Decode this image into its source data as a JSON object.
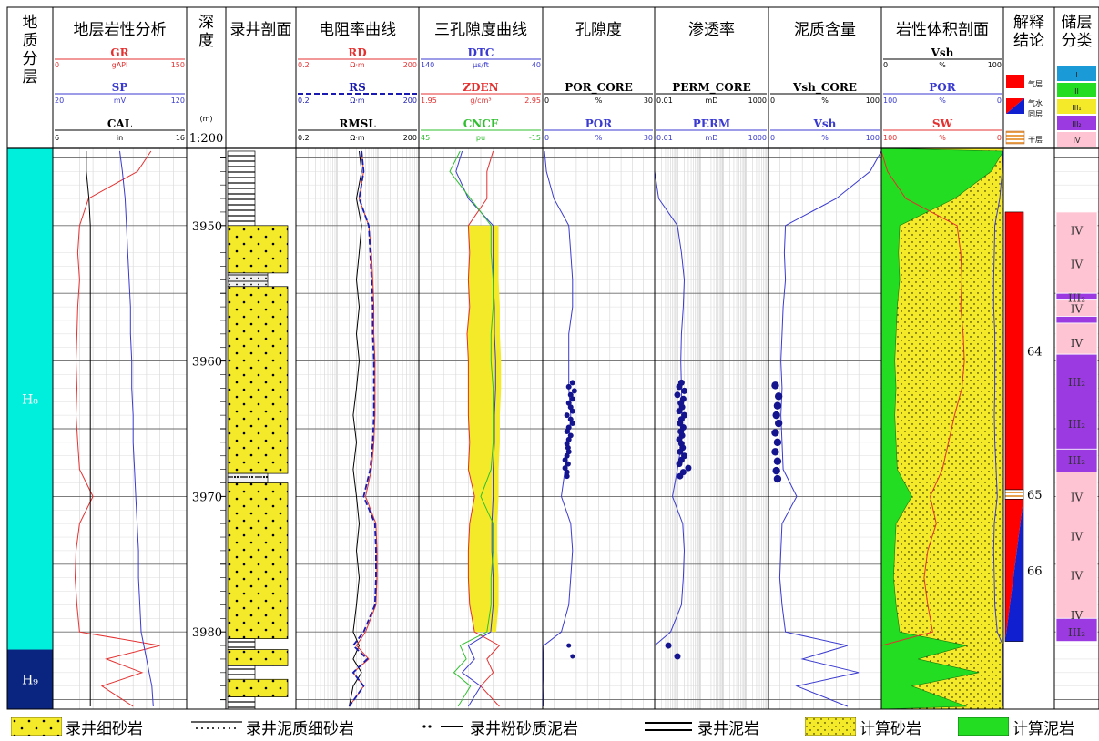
{
  "tracks": {
    "layers": {
      "title": "地质分层"
    },
    "lith": {
      "title": "地层岩性分析",
      "curves": [
        {
          "name": "GR",
          "unit": "gAPI",
          "min": "0",
          "max": "150",
          "color": "#e53030"
        },
        {
          "name": "SP",
          "unit": "mV",
          "min": "20",
          "max": "120",
          "color": "#3a3ad0"
        },
        {
          "name": "CAL",
          "unit": "in",
          "min": "6",
          "max": "16",
          "color": "#000000"
        }
      ]
    },
    "depth": {
      "title": "深度",
      "unit": "(m)",
      "scale": "1:200"
    },
    "core": {
      "title": "录井剖面"
    },
    "res": {
      "title": "电阻率曲线",
      "curves": [
        {
          "name": "RD",
          "unit": "Ω·m",
          "min": "0.2",
          "max": "200",
          "color": "#e53030"
        },
        {
          "name": "RS",
          "unit": "Ω·m",
          "min": "0.2",
          "max": "200",
          "color": "#1a1ab0"
        },
        {
          "name": "RMSL",
          "unit": "Ω·m",
          "min": "0.2",
          "max": "200",
          "color": "#000000"
        }
      ]
    },
    "por3": {
      "title": "三孔隙度曲线",
      "curves": [
        {
          "name": "DTC",
          "unit": "μs/ft",
          "min": "140",
          "max": "40",
          "color": "#3a3ad0"
        },
        {
          "name": "ZDEN",
          "unit": "g/cm³",
          "min": "1.95",
          "max": "2.95",
          "color": "#e53030"
        },
        {
          "name": "CNCF",
          "unit": "pu",
          "min": "45",
          "max": "-15",
          "color": "#2fbf2f"
        }
      ]
    },
    "por": {
      "title": "孔隙度",
      "curves": [
        {
          "name": "POR_CORE",
          "unit": "%",
          "min": "0",
          "max": "30",
          "color": "#000000"
        },
        {
          "name": "POR",
          "unit": "%",
          "min": "0",
          "max": "30",
          "color": "#3a3ad0"
        }
      ]
    },
    "perm": {
      "title": "渗透率",
      "curves": [
        {
          "name": "PERM_CORE",
          "unit": "mD",
          "min": "0.01",
          "max": "1000",
          "color": "#000000"
        },
        {
          "name": "PERM",
          "unit": "mD",
          "min": "0.01",
          "max": "1000",
          "color": "#3a3ad0"
        }
      ]
    },
    "vsh": {
      "title": "泥质含量",
      "curves": [
        {
          "name": "Vsh_CORE",
          "unit": "%",
          "min": "0",
          "max": "100",
          "color": "#000000"
        },
        {
          "name": "Vsh",
          "unit": "%",
          "min": "0",
          "max": "100",
          "color": "#3a3ad0"
        }
      ]
    },
    "vol": {
      "title": "岩性体积剖面",
      "curves": [
        {
          "name": "Vsh",
          "unit": "%",
          "min": "0",
          "max": "100",
          "color": "#000000"
        },
        {
          "name": "POR",
          "unit": "%",
          "min": "100",
          "max": "0",
          "color": "#3a3ad0"
        },
        {
          "name": "SW",
          "unit": "%",
          "min": "100",
          "max": "0",
          "color": "#e53030"
        }
      ]
    },
    "interp": {
      "title": "解释结论",
      "legend": [
        {
          "label": "气层",
          "color": "#ff0000"
        },
        {
          "label": "气水同层",
          "color": "#ff0000"
        },
        {
          "label": "干层",
          "color": "#f0c070"
        }
      ]
    },
    "class": {
      "title": "储层分类",
      "legend": [
        "I",
        "II",
        "III₁",
        "III₂",
        "IV"
      ]
    }
  },
  "chart_data": {
    "type": "well-log",
    "depth_ticks": [
      3950,
      3960,
      3970,
      3980
    ],
    "depth_range": [
      3944.3,
      3985.7
    ],
    "layers": [
      {
        "name": "H₈",
        "top": 3944.3,
        "bottom": 3981.3,
        "color": "#00eedc"
      },
      {
        "name": "H₉",
        "top": 3981.3,
        "bottom": 3985.7,
        "color": "#0a2580"
      }
    ],
    "core_intervals": [
      {
        "top": 3944.5,
        "bottom": 3950.0,
        "type": "mudstone"
      },
      {
        "top": 3950.0,
        "bottom": 3953.5,
        "type": "fine-sandstone"
      },
      {
        "top": 3953.5,
        "bottom": 3954.5,
        "type": "argillaceous-sandstone"
      },
      {
        "top": 3954.5,
        "bottom": 3968.3,
        "type": "fine-sandstone"
      },
      {
        "top": 3968.3,
        "bottom": 3969.0,
        "type": "sandy-mudstone"
      },
      {
        "top": 3969.0,
        "bottom": 3980.5,
        "type": "fine-sandstone"
      },
      {
        "top": 3980.5,
        "bottom": 3981.3,
        "type": "mudstone"
      },
      {
        "top": 3981.3,
        "bottom": 3982.5,
        "type": "fine-sandstone"
      },
      {
        "top": 3982.5,
        "bottom": 3983.5,
        "type": "mudstone"
      },
      {
        "top": 3983.5,
        "bottom": 3984.8,
        "type": "fine-sandstone"
      },
      {
        "top": 3984.8,
        "bottom": 3985.7,
        "type": "mudstone"
      }
    ],
    "interpretation": [
      {
        "top": 3949.0,
        "bottom": 3969.5,
        "type": "gas",
        "label": "64"
      },
      {
        "top": 3969.5,
        "bottom": 3970.2,
        "type": "dry",
        "label": "65"
      },
      {
        "top": 3970.2,
        "bottom": 3980.7,
        "type": "gas-water",
        "label": "66"
      }
    ],
    "reservoir_classes": [
      {
        "top": 3944.5,
        "bottom": 3945.5,
        "cls": "I"
      },
      {
        "top": 3945.5,
        "bottom": 3946.5,
        "cls": "II"
      },
      {
        "top": 3946.5,
        "bottom": 3947.5,
        "cls": "III₁"
      },
      {
        "top": 3947.5,
        "bottom": 3948.5,
        "cls": "III₂"
      },
      {
        "top": 3948.5,
        "bottom": 3949.5,
        "cls": "IV"
      },
      {
        "top": 3949.0,
        "bottom": 3955.0,
        "cls": "IV"
      },
      {
        "top": 3955.0,
        "bottom": 3955.5,
        "cls": "III₂"
      },
      {
        "top": 3955.5,
        "bottom": 3956.7,
        "cls": "IV"
      },
      {
        "top": 3956.7,
        "bottom": 3957.2,
        "cls": "III₂"
      },
      {
        "top": 3957.2,
        "bottom": 3959.5,
        "cls": "IV"
      },
      {
        "top": 3959.5,
        "bottom": 3966.5,
        "cls": "III₂"
      },
      {
        "top": 3966.5,
        "bottom": 3968.2,
        "cls": "III₂"
      },
      {
        "top": 3968.2,
        "bottom": 3979.0,
        "cls": "IV"
      },
      {
        "top": 3979.0,
        "bottom": 3980.7,
        "cls": "III₂"
      }
    ],
    "class_labels": [
      {
        "depth": 3950.3,
        "cls": "IV"
      },
      {
        "depth": 3952.8,
        "cls": "IV"
      },
      {
        "depth": 3955.3,
        "cls": "III₂"
      },
      {
        "depth": 3956.1,
        "cls": "IV"
      },
      {
        "depth": 3958.6,
        "cls": "IV"
      },
      {
        "depth": 3961.5,
        "cls": "III₂"
      },
      {
        "depth": 3964.6,
        "cls": "III₂"
      },
      {
        "depth": 3967.3,
        "cls": "III₂"
      },
      {
        "depth": 3970.0,
        "cls": "IV"
      },
      {
        "depth": 3972.9,
        "cls": "IV"
      },
      {
        "depth": 3975.8,
        "cls": "IV"
      },
      {
        "depth": 3978.7,
        "cls": "IV"
      },
      {
        "depth": 3980.0,
        "cls": "III₂"
      }
    ],
    "curves": {
      "depth": [
        3944.5,
        3946,
        3948,
        3950,
        3952,
        3954,
        3956,
        3958,
        3960,
        3962,
        3964,
        3966,
        3968,
        3970,
        3972,
        3974,
        3976,
        3978,
        3980,
        3981,
        3982,
        3983,
        3984,
        3985.5
      ],
      "GR": [
        110,
        95,
        40,
        30,
        28,
        30,
        28,
        27,
        26,
        27,
        26,
        28,
        30,
        45,
        30,
        26,
        25,
        27,
        30,
        120,
        60,
        100,
        55,
        90
      ],
      "SP": [
        70,
        72,
        74,
        75,
        76,
        77,
        78,
        78,
        79,
        79,
        80,
        80,
        81,
        82,
        83,
        84,
        84,
        85,
        86,
        88,
        90,
        92,
        94,
        95
      ],
      "CAL": [
        8.5,
        8.5,
        8.7,
        8.8,
        8.8,
        8.8,
        8.8,
        8.8,
        8.8,
        8.8,
        8.8,
        8.8,
        8.8,
        8.8,
        8.8,
        8.8,
        8.8,
        8.8,
        8.8,
        8.8,
        8.8,
        8.8,
        8.8,
        8.8
      ],
      "RD": [
        8,
        9,
        7,
        12,
        14,
        15,
        16,
        16,
        17,
        17,
        17,
        16,
        14,
        10,
        18,
        19,
        19,
        18,
        10,
        6,
        12,
        5,
        9,
        4
      ],
      "RS": [
        8,
        9,
        7,
        12,
        13,
        14,
        15,
        15,
        16,
        16,
        16,
        15,
        13,
        9,
        17,
        18,
        18,
        17,
        9,
        5,
        11,
        5,
        9,
        4
      ],
      "RMSL": [
        7,
        8,
        6,
        8,
        7,
        6,
        7,
        6,
        7,
        6,
        5,
        6,
        5,
        6,
        7,
        6,
        7,
        6,
        5,
        7,
        5,
        8,
        5,
        4
      ],
      "DTC": [
        105,
        110,
        100,
        80,
        80,
        80,
        79,
        79,
        78,
        78,
        79,
        79,
        80,
        80,
        81,
        81,
        80,
        80,
        82,
        100,
        95,
        105,
        90,
        100
      ],
      "ZDEN": [
        2.55,
        2.5,
        2.5,
        2.35,
        2.36,
        2.35,
        2.36,
        2.34,
        2.35,
        2.35,
        2.35,
        2.36,
        2.35,
        2.4,
        2.36,
        2.35,
        2.35,
        2.36,
        2.4,
        2.6,
        2.5,
        2.55,
        2.45,
        2.6
      ],
      "CNCF": [
        25,
        30,
        20,
        10,
        10,
        9,
        9,
        10,
        10,
        9,
        9,
        9,
        10,
        15,
        9,
        9,
        10,
        10,
        12,
        25,
        22,
        28,
        20,
        26
      ],
      "POR": [
        0.5,
        1,
        3,
        7,
        7.5,
        8,
        8,
        7,
        7,
        7,
        7.5,
        7,
        6,
        5,
        7.5,
        8,
        7.5,
        7,
        5,
        0.3,
        0.2,
        0.2,
        0.3,
        0.2
      ],
      "PERM": [
        0.01,
        0.01,
        0.015,
        0.1,
        0.15,
        0.2,
        0.18,
        0.15,
        0.14,
        0.15,
        0.16,
        0.15,
        0.1,
        0.06,
        0.17,
        0.2,
        0.18,
        0.15,
        0.05,
        0.01,
        0.01,
        0.01,
        0.01,
        0.01
      ],
      "VSH": [
        100,
        90,
        60,
        15,
        14,
        15,
        13,
        12,
        11,
        12,
        11,
        12,
        13,
        25,
        12,
        11,
        10,
        12,
        15,
        70,
        30,
        80,
        25,
        70
      ],
      "SW": [
        100,
        95,
        80,
        38,
        35,
        34,
        35,
        33,
        32,
        34,
        40,
        45,
        50,
        60,
        55,
        62,
        65,
        62,
        58,
        100,
        100,
        100,
        100,
        100
      ]
    },
    "cores": {
      "depth": [
        3961.6,
        3961.9,
        3962.2,
        3962.5,
        3962.8,
        3963.1,
        3963.4,
        3963.7,
        3964.0,
        3964.3,
        3964.6,
        3964.9,
        3965.2,
        3965.5,
        3965.8,
        3966.1,
        3966.4,
        3966.7,
        3967.0,
        3967.3,
        3967.6,
        3967.9,
        3968.2,
        3968.5
      ],
      "POR": [
        8,
        7,
        8.5,
        7.5,
        8,
        7,
        7.5,
        8,
        6.5,
        7.5,
        8,
        7,
        6.5,
        7.5,
        7,
        6.5,
        6.8,
        7,
        6.5,
        6,
        6.8,
        6,
        6.5,
        6.5
      ],
      "PERM": [
        0.15,
        0.12,
        0.2,
        0.1,
        0.18,
        0.14,
        0.16,
        0.12,
        0.2,
        0.15,
        0.13,
        0.18,
        0.14,
        0.16,
        0.12,
        0.15,
        0.17,
        0.13,
        0.2,
        0.15,
        0.12,
        0.3,
        0.18,
        0.13
      ],
      "extra": [
        {
          "depth": 3981.0,
          "POR": 7,
          "PERM": 0.04
        },
        {
          "depth": 3981.8,
          "POR": 8,
          "PERM": 0.1
        }
      ],
      "VSH_depth": [
        3961.8,
        3962.6,
        3963.3,
        3964.0,
        3964.6,
        3965.3,
        3966.0,
        3966.7,
        3967.4,
        3968.1,
        3968.7
      ],
      "VSH": [
        6,
        9,
        8,
        7,
        9,
        6,
        8,
        6,
        8,
        7,
        8
      ]
    }
  },
  "legend": {
    "items": [
      {
        "label": "录井细砂岩",
        "kind": "fine-sandstone"
      },
      {
        "label": "录井泥质细砂岩",
        "kind": "argillaceous-sandstone"
      },
      {
        "label": "录井粉砂质泥岩",
        "kind": "sandy-mudstone"
      },
      {
        "label": "录井泥岩",
        "kind": "mudstone"
      },
      {
        "label": "计算砂岩",
        "kind": "calc-sand"
      },
      {
        "label": "计算泥岩",
        "kind": "calc-shale"
      }
    ]
  }
}
